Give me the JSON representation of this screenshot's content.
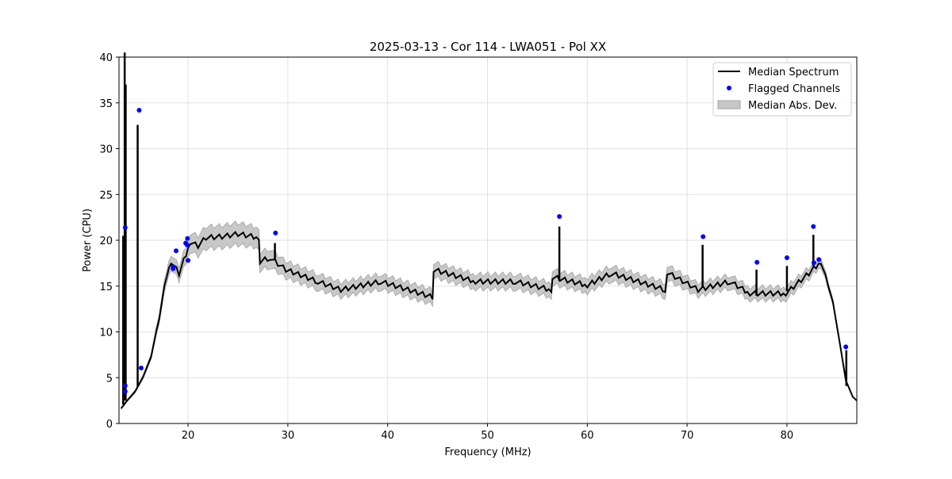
{
  "chart_data": {
    "type": "line",
    "title": "2025-03-13 - Cor 114 - LWA051 - Pol XX",
    "xlabel": "Frequency (MHz)",
    "ylabel": "Power (CPU)",
    "xlim": [
      13.08,
      87.0
    ],
    "ylim": [
      0,
      40
    ],
    "xticks": [
      20,
      30,
      40,
      50,
      60,
      70,
      80
    ],
    "yticks": [
      0,
      5,
      10,
      15,
      20,
      25,
      30,
      35,
      40
    ],
    "grid": true,
    "legend": {
      "placement": "top-right",
      "entries": [
        "Median Spectrum",
        "Flagged Channels",
        "Median Abs. Dev."
      ]
    },
    "colors": {
      "median": "#000000",
      "flagged": "#0000ff",
      "mad": "#c8c8c8",
      "mad_edge": "#a0a0a0"
    },
    "median_spectrum": [
      [
        13.3,
        1.65,
        0.1
      ],
      [
        13.9,
        2.5,
        0.1
      ],
      [
        14.7,
        3.5,
        0.15
      ],
      [
        15.5,
        5.1,
        0.2
      ],
      [
        16.3,
        7.3,
        0.3
      ],
      [
        17.1,
        11.6,
        0.5
      ],
      [
        17.9,
        16.4,
        0.7
      ],
      [
        18.3,
        17.7,
        0.8
      ],
      [
        19.1,
        16.4,
        0.8
      ],
      [
        19.8,
        18.5,
        0.9
      ],
      [
        20.2,
        19.8,
        1.0
      ],
      [
        21.0,
        19.4,
        1.1
      ],
      [
        21.8,
        20.3,
        1.2
      ],
      [
        23.4,
        20.4,
        1.2
      ],
      [
        25.0,
        20.7,
        1.2
      ],
      [
        27.1,
        20.3,
        1.1
      ],
      [
        27.2,
        17.7,
        1.0
      ],
      [
        28.2,
        18.1,
        1.0
      ],
      [
        29.8,
        16.8,
        0.9
      ],
      [
        33.0,
        15.5,
        0.85
      ],
      [
        35.3,
        14.6,
        0.8
      ],
      [
        39.3,
        15.5,
        0.8
      ],
      [
        44.5,
        13.8,
        0.8
      ],
      [
        44.6,
        16.8,
        0.8
      ],
      [
        48.8,
        15.5,
        0.8
      ],
      [
        52.8,
        15.5,
        0.8
      ],
      [
        56.4,
        14.6,
        0.8
      ],
      [
        56.5,
        16.0,
        0.8
      ],
      [
        60.0,
        15.1,
        0.8
      ],
      [
        62.4,
        16.4,
        0.8
      ],
      [
        67.8,
        14.6,
        0.8
      ],
      [
        68.0,
        16.5,
        0.8
      ],
      [
        71.1,
        14.6,
        0.7
      ],
      [
        74.3,
        15.5,
        0.7
      ],
      [
        76.3,
        14.2,
        0.7
      ],
      [
        79.9,
        14.2,
        0.7
      ],
      [
        82.2,
        16.4,
        0.6
      ],
      [
        83.4,
        17.7,
        0.5
      ],
      [
        84.6,
        13.3,
        0.3
      ],
      [
        85.4,
        8.1,
        0.15
      ],
      [
        85.9,
        4.7,
        0.1
      ],
      [
        86.6,
        2.9,
        0.05
      ],
      [
        87.0,
        2.5,
        0.05
      ]
    ],
    "spikes": [
      [
        13.5,
        20.5
      ],
      [
        13.65,
        45
      ],
      [
        13.75,
        37
      ],
      [
        14.95,
        32.6
      ],
      [
        28.7,
        19.7
      ],
      [
        57.2,
        21.5
      ],
      [
        71.55,
        19.5
      ],
      [
        76.95,
        16.8
      ],
      [
        80.0,
        17.2
      ],
      [
        82.65,
        20.6
      ],
      [
        85.95,
        8.0
      ]
    ],
    "flagged_channels": [
      [
        13.7,
        21.4
      ],
      [
        13.7,
        4.15
      ],
      [
        13.7,
        3.5
      ],
      [
        15.1,
        34.2
      ],
      [
        15.3,
        6.06
      ],
      [
        18.5,
        17.1
      ],
      [
        18.5,
        16.9
      ],
      [
        18.8,
        18.85
      ],
      [
        19.76,
        19.7
      ],
      [
        19.9,
        19.5
      ],
      [
        19.94,
        20.2
      ],
      [
        20.0,
        17.8
      ],
      [
        28.76,
        20.8
      ],
      [
        57.2,
        22.6
      ],
      [
        71.6,
        20.4
      ],
      [
        77.0,
        17.6
      ],
      [
        80.0,
        18.1
      ],
      [
        82.65,
        21.5
      ],
      [
        82.7,
        17.55
      ],
      [
        83.2,
        17.9
      ],
      [
        85.9,
        8.37
      ]
    ]
  }
}
